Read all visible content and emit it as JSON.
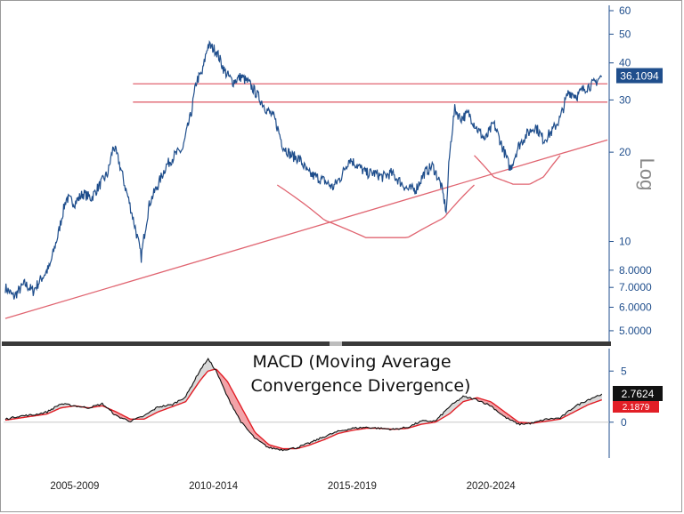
{
  "chart_data": [
    {
      "type": "line",
      "panel": "price",
      "yscale": "log",
      "ylim": [
        4.6,
        60
      ],
      "xlim": [
        2004.0,
        2025.7
      ],
      "ylabel": "Log",
      "yticks": [
        "60",
        "50",
        "40",
        "30",
        "20",
        "10",
        "8.0000",
        "7.0000",
        "6.0000",
        "5.0000"
      ],
      "ytick_values": [
        60,
        50,
        40,
        30,
        20,
        10,
        8,
        7,
        6,
        5
      ],
      "last_value_label": "36.1094",
      "last_value": 36.1094,
      "series": [
        {
          "color": "#1f4e8c",
          "x": [
            2004.0,
            2004.3,
            2004.7,
            2005.0,
            2005.3,
            2005.6,
            2005.9,
            2006.2,
            2006.5,
            2006.8,
            2007.1,
            2007.4,
            2007.7,
            2007.9,
            2008.1,
            2008.3,
            2008.6,
            2008.9,
            2009.2,
            2009.5,
            2009.8,
            2010.1,
            2010.4,
            2010.7,
            2010.9,
            2011.1,
            2011.3,
            2011.6,
            2011.9,
            2012.2,
            2012.5,
            2012.8,
            2013.1,
            2013.4,
            2013.7,
            2014.0,
            2014.3,
            2014.6,
            2014.9,
            2015.2,
            2015.5,
            2015.8,
            2016.1,
            2016.4,
            2016.7,
            2017.0,
            2017.3,
            2017.6,
            2017.9,
            2018.2,
            2018.5,
            2018.8,
            2019.1,
            2019.4,
            2019.7,
            2019.9,
            2020.0,
            2020.2,
            2020.4,
            2020.7,
            2021.0,
            2021.3,
            2021.6,
            2021.9,
            2022.2,
            2022.5,
            2022.8,
            2023.1,
            2023.4,
            2023.7,
            2024.0,
            2024.3,
            2024.6,
            2024.9,
            2025.2,
            2025.5
          ],
          "y": [
            7.0,
            6.5,
            7.2,
            6.8,
            7.5,
            8.2,
            10.5,
            14.0,
            13.5,
            14.5,
            14.0,
            15.5,
            17.0,
            21.0,
            18.5,
            15.5,
            12.0,
            8.8,
            13.5,
            15.5,
            18.0,
            19.5,
            20.5,
            27.0,
            35.0,
            37.0,
            46.0,
            44.0,
            37.5,
            34.5,
            36.0,
            34.0,
            31.0,
            28.0,
            26.0,
            21.0,
            19.5,
            19.0,
            17.0,
            16.5,
            16.0,
            15.2,
            16.5,
            19.0,
            18.0,
            17.0,
            17.0,
            16.5,
            17.0,
            16.0,
            15.0,
            15.0,
            17.0,
            18.0,
            15.5,
            12.5,
            19.0,
            28.0,
            26.0,
            27.0,
            24.0,
            22.0,
            25.0,
            21.0,
            17.5,
            21.0,
            23.0,
            24.5,
            22.0,
            23.5,
            26.0,
            32.0,
            31.0,
            33.0,
            34.0,
            36.1
          ]
        }
      ],
      "hlines": [
        {
          "y": 34.0,
          "x_from": 2008.6,
          "x_to": 2025.7,
          "color": "#e06470"
        },
        {
          "y": 29.5,
          "x_from": 2008.6,
          "x_to": 2025.7,
          "color": "#e06470"
        }
      ],
      "trendline": {
        "x": [
          2004.0,
          2025.7
        ],
        "y": [
          5.5,
          22.0
        ],
        "color": "#e06470"
      },
      "arcs": [
        {
          "x": [
            2013.8,
            2015.5,
            2017.0,
            2018.5,
            2019.8,
            2020.9
          ],
          "y": [
            15.5,
            11.8,
            10.3,
            10.3,
            12.0,
            15.5
          ],
          "color": "#e06470"
        },
        {
          "x": [
            2020.9,
            2021.6,
            2022.3,
            2022.9,
            2023.4,
            2024.0
          ],
          "y": [
            19.5,
            16.5,
            15.6,
            15.6,
            16.5,
            19.5
          ],
          "color": "#e06470"
        }
      ]
    },
    {
      "type": "area",
      "panel": "macd",
      "title": "MACD (Moving Average Convergence Divergence)",
      "ylim": [
        -3.5,
        6.5
      ],
      "xlim": [
        2004.0,
        2025.7
      ],
      "yticks": [
        "5",
        "0"
      ],
      "ytick_values": [
        5,
        0
      ],
      "zero_line": 0,
      "last_value_label": "2.7624",
      "last_value": 2.7624,
      "signal_value_label": "2.1879",
      "signal_value": 2.1879,
      "categories": [
        "2005-2009",
        "2010-2014",
        "2015-2019",
        "2020-2024"
      ],
      "category_centers": [
        2006.5,
        2011.5,
        2016.5,
        2021.5
      ],
      "series": [
        {
          "color": "#111111",
          "x": [
            2004.0,
            2004.5,
            2005.0,
            2005.5,
            2006.0,
            2006.5,
            2007.0,
            2007.5,
            2008.0,
            2008.5,
            2009.0,
            2009.5,
            2010.0,
            2010.5,
            2011.0,
            2011.3,
            2011.6,
            2012.0,
            2012.5,
            2013.0,
            2013.5,
            2014.0,
            2014.5,
            2015.0,
            2015.5,
            2016.0,
            2016.5,
            2017.0,
            2017.5,
            2018.0,
            2018.5,
            2019.0,
            2019.5,
            2020.0,
            2020.5,
            2021.0,
            2021.5,
            2022.0,
            2022.5,
            2023.0,
            2023.5,
            2024.0,
            2024.5,
            2025.0,
            2025.5
          ],
          "y": [
            0.3,
            0.6,
            0.7,
            1.0,
            1.8,
            1.6,
            1.4,
            1.8,
            0.6,
            0.1,
            0.6,
            1.5,
            1.7,
            2.5,
            5.0,
            6.2,
            5.0,
            2.5,
            0.0,
            -1.6,
            -2.5,
            -2.7,
            -2.5,
            -2.0,
            -1.4,
            -0.9,
            -0.6,
            -0.5,
            -0.6,
            -0.7,
            -0.5,
            0.1,
            0.1,
            1.5,
            2.5,
            2.2,
            1.6,
            0.5,
            -0.2,
            -0.1,
            0.3,
            0.4,
            1.5,
            2.2,
            2.76
          ]
        },
        {
          "color": "#e21e26",
          "x": [
            2004.0,
            2004.5,
            2005.0,
            2005.5,
            2006.0,
            2006.5,
            2007.0,
            2007.5,
            2008.0,
            2008.5,
            2009.0,
            2009.5,
            2010.0,
            2010.5,
            2011.0,
            2011.3,
            2011.6,
            2012.0,
            2012.5,
            2013.0,
            2013.5,
            2014.0,
            2014.5,
            2015.0,
            2015.5,
            2016.0,
            2016.5,
            2017.0,
            2017.5,
            2018.0,
            2018.5,
            2019.0,
            2019.5,
            2020.0,
            2020.5,
            2021.0,
            2021.5,
            2022.0,
            2022.5,
            2023.0,
            2023.5,
            2024.0,
            2024.5,
            2025.0,
            2025.5
          ],
          "y": [
            0.2,
            0.4,
            0.6,
            0.8,
            1.4,
            1.6,
            1.4,
            1.6,
            1.0,
            0.3,
            0.3,
            1.0,
            1.5,
            2.0,
            4.0,
            5.0,
            5.2,
            4.0,
            1.5,
            -1.0,
            -2.2,
            -2.6,
            -2.6,
            -2.2,
            -1.7,
            -1.1,
            -0.8,
            -0.6,
            -0.6,
            -0.7,
            -0.6,
            -0.2,
            0.0,
            0.8,
            2.0,
            2.4,
            2.0,
            1.0,
            0.0,
            -0.1,
            0.1,
            0.3,
            1.0,
            1.7,
            2.19
          ]
        }
      ]
    }
  ]
}
